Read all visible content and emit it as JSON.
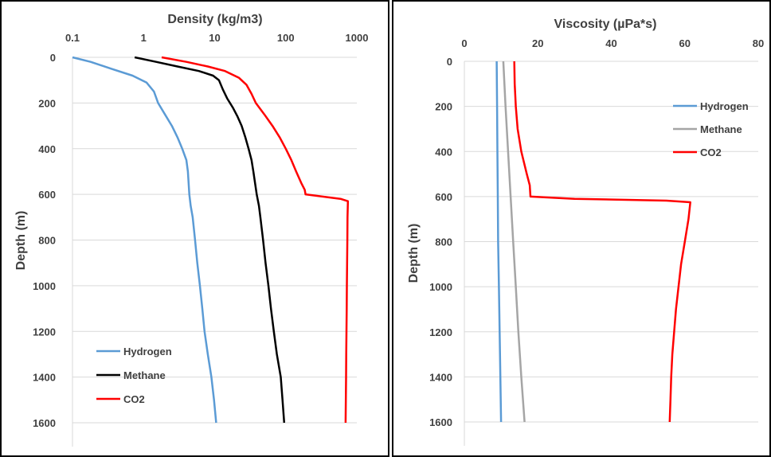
{
  "chart_data": [
    {
      "type": "line",
      "title": "",
      "xlabel": "Density (kg/m3)",
      "ylabel": "Depth (m)",
      "x_scale": "log",
      "x_axis_position": "top",
      "y_reversed": true,
      "xlim": [
        0.1,
        1000
      ],
      "ylim": [
        0,
        1600
      ],
      "x_ticks": [
        "0.1",
        "1",
        "10",
        "100",
        "1000"
      ],
      "y_ticks": [
        "0",
        "200",
        "400",
        "600",
        "800",
        "1000",
        "1200",
        "1400",
        "1600"
      ],
      "grid": "horizontal",
      "legend_position": "bottom-left",
      "series": [
        {
          "name": "Hydrogen",
          "color": "#5b9bd5",
          "points": [
            [
              0.1,
              0
            ],
            [
              0.18,
              20
            ],
            [
              0.35,
              50
            ],
            [
              0.7,
              80
            ],
            [
              1.1,
              110
            ],
            [
              1.4,
              150
            ],
            [
              1.6,
              200
            ],
            [
              2.0,
              250
            ],
            [
              2.5,
              300
            ],
            [
              3.0,
              350
            ],
            [
              3.5,
              400
            ],
            [
              4.0,
              450
            ],
            [
              4.2,
              500
            ],
            [
              4.3,
              550
            ],
            [
              4.4,
              600
            ],
            [
              4.6,
              650
            ],
            [
              4.9,
              700
            ],
            [
              5.3,
              800
            ],
            [
              5.7,
              900
            ],
            [
              6.2,
              1000
            ],
            [
              6.7,
              1100
            ],
            [
              7.2,
              1200
            ],
            [
              8.0,
              1300
            ],
            [
              9.0,
              1400
            ],
            [
              9.8,
              1500
            ],
            [
              10.5,
              1600
            ]
          ]
        },
        {
          "name": "Methane",
          "color": "#000000",
          "points": [
            [
              0.75,
              0
            ],
            [
              1.5,
              20
            ],
            [
              3.0,
              40
            ],
            [
              6.0,
              60
            ],
            [
              9.5,
              80
            ],
            [
              11.5,
              100
            ],
            [
              13.0,
              140
            ],
            [
              15.0,
              180
            ],
            [
              18.0,
              220
            ],
            [
              21.0,
              260
            ],
            [
              24.0,
              300
            ],
            [
              27.0,
              350
            ],
            [
              30.0,
              400
            ],
            [
              33.0,
              450
            ],
            [
              35.0,
              500
            ],
            [
              37.0,
              550
            ],
            [
              39.0,
              600
            ],
            [
              42.0,
              650
            ],
            [
              44.0,
              700
            ],
            [
              48.0,
              800
            ],
            [
              52.0,
              900
            ],
            [
              57.0,
              1000
            ],
            [
              62.0,
              1100
            ],
            [
              68.0,
              1200
            ],
            [
              75.0,
              1300
            ],
            [
              85.0,
              1400
            ],
            [
              90.0,
              1500
            ],
            [
              95.0,
              1600
            ]
          ]
        },
        {
          "name": "CO2",
          "color": "#ff0000",
          "points": [
            [
              1.8,
              0
            ],
            [
              4.0,
              20
            ],
            [
              8.0,
              40
            ],
            [
              14.0,
              60
            ],
            [
              22.0,
              90
            ],
            [
              28.0,
              120
            ],
            [
              33.0,
              160
            ],
            [
              38.0,
              200
            ],
            [
              50.0,
              250
            ],
            [
              65.0,
              300
            ],
            [
              82.0,
              350
            ],
            [
              100.0,
              400
            ],
            [
              120.0,
              450
            ],
            [
              140.0,
              500
            ],
            [
              165.0,
              550
            ],
            [
              185.0,
              580
            ],
            [
              190.0,
              600
            ],
            [
              600.0,
              620
            ],
            [
              750.0,
              630
            ],
            [
              740.0,
              700
            ],
            [
              735.0,
              800
            ],
            [
              730.0,
              900
            ],
            [
              725.0,
              1000
            ],
            [
              720.0,
              1100
            ],
            [
              715.0,
              1200
            ],
            [
              710.0,
              1300
            ],
            [
              705.0,
              1400
            ],
            [
              700.0,
              1500
            ],
            [
              695.0,
              1600
            ]
          ]
        }
      ]
    },
    {
      "type": "line",
      "title": "",
      "xlabel": "Viscosity (µPa*s)",
      "ylabel": "Depth (m)",
      "x_scale": "linear",
      "x_axis_position": "top",
      "y_reversed": true,
      "xlim": [
        0,
        80
      ],
      "ylim": [
        0,
        1600
      ],
      "x_ticks": [
        "0",
        "20",
        "40",
        "60",
        "80"
      ],
      "y_ticks": [
        "0",
        "200",
        "400",
        "600",
        "800",
        "1000",
        "1200",
        "1400",
        "1600"
      ],
      "grid": "horizontal",
      "legend_position": "top-right",
      "series": [
        {
          "name": "Hydrogen",
          "color": "#5b9bd5",
          "points": [
            [
              8.8,
              0
            ],
            [
              8.9,
              200
            ],
            [
              9.0,
              400
            ],
            [
              9.1,
              600
            ],
            [
              9.2,
              800
            ],
            [
              9.4,
              1000
            ],
            [
              9.6,
              1200
            ],
            [
              9.8,
              1400
            ],
            [
              10.0,
              1600
            ]
          ]
        },
        {
          "name": "Methane",
          "color": "#a5a5a5",
          "points": [
            [
              10.6,
              0
            ],
            [
              11.2,
              200
            ],
            [
              11.9,
              400
            ],
            [
              12.6,
              600
            ],
            [
              13.3,
              800
            ],
            [
              14.0,
              1000
            ],
            [
              14.7,
              1200
            ],
            [
              15.5,
              1400
            ],
            [
              16.4,
              1600
            ]
          ]
        },
        {
          "name": "CO2",
          "color": "#ff0000",
          "points": [
            [
              13.6,
              0
            ],
            [
              13.7,
              100
            ],
            [
              14.0,
              200
            ],
            [
              14.5,
              300
            ],
            [
              15.5,
              400
            ],
            [
              17.0,
              500
            ],
            [
              17.8,
              550
            ],
            [
              18.0,
              600
            ],
            [
              30.0,
              610
            ],
            [
              55.0,
              618
            ],
            [
              61.5,
              625
            ],
            [
              61.0,
              700
            ],
            [
              60.0,
              800
            ],
            [
              59.0,
              900
            ],
            [
              58.3,
              1000
            ],
            [
              57.6,
              1100
            ],
            [
              57.1,
              1200
            ],
            [
              56.6,
              1300
            ],
            [
              56.3,
              1400
            ],
            [
              56.1,
              1500
            ],
            [
              55.9,
              1600
            ]
          ]
        }
      ]
    }
  ]
}
